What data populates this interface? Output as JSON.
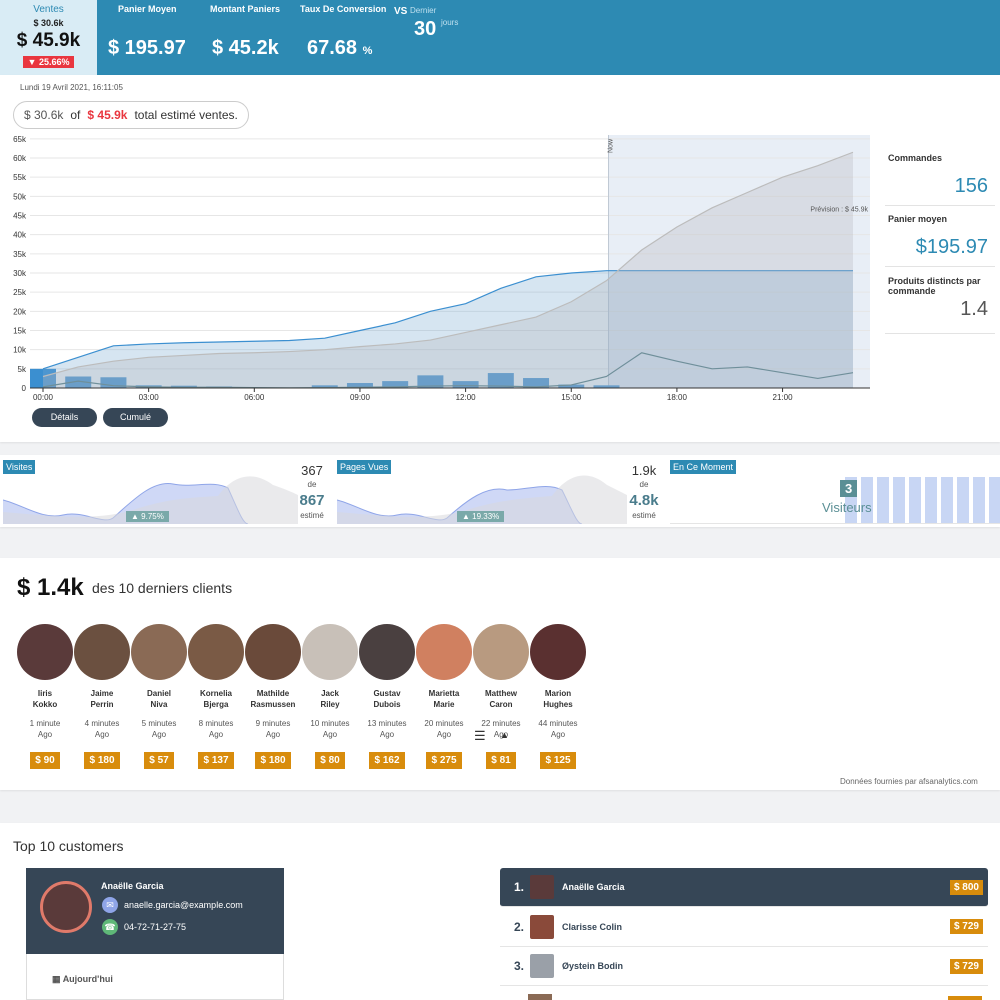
{
  "header": {
    "ventes_label": "Ventes",
    "ventes_prev": "$ 30.6k",
    "ventes_value": "$ 45.9k",
    "ventes_change": "25.66%",
    "panier_label": "Panier Moyen",
    "panier_value": "$ 195.97",
    "montant_label": "Montant Paniers",
    "montant_value": "$ 45.2k",
    "taux_label": "Taux De Conversion",
    "taux_value": "67.68",
    "taux_unit": "%",
    "vs_label": "VS",
    "vs_dernier": "Dernier",
    "vs_num": "30",
    "vs_jours": "jours"
  },
  "date": "Lundi 19 Avril 2021, 16:11:05",
  "estimate": {
    "current": "$ 30.6k",
    "of": "of",
    "total": "$ 45.9k",
    "text": "total estimé ventes."
  },
  "chart_data": {
    "type": "line",
    "title": "",
    "x": [
      "00:00",
      "01:00",
      "02:00",
      "03:00",
      "04:00",
      "05:00",
      "06:00",
      "07:00",
      "08:00",
      "09:00",
      "10:00",
      "11:00",
      "12:00",
      "13:00",
      "14:00",
      "15:00",
      "16:00",
      "17:00",
      "18:00",
      "19:00",
      "20:00",
      "21:00",
      "22:00",
      "23:00"
    ],
    "xticks": [
      "00:00",
      "03:00",
      "06:00",
      "09:00",
      "12:00",
      "15:00",
      "18:00",
      "21:00"
    ],
    "yticks": [
      "0",
      "5k",
      "10k",
      "15k",
      "20k",
      "25k",
      "30k",
      "35k",
      "40k",
      "45k",
      "50k",
      "55k",
      "60k",
      "65k"
    ],
    "ylim": [
      0,
      66000
    ],
    "now_label": "Now",
    "forecast_label": "Prévision : $ 45.9k",
    "series": [
      {
        "values": [
          5000,
          8000,
          11000,
          11500,
          11800,
          12000,
          12200,
          12400,
          13000,
          15000,
          17000,
          20000,
          22000,
          26000,
          29000,
          30000,
          30600,
          30600,
          30600,
          30600,
          30600,
          30600,
          30600,
          30600
        ]
      },
      {
        "values": [
          3000,
          5500,
          7000,
          8000,
          8500,
          9000,
          9200,
          9500,
          10000,
          10800,
          11500,
          12500,
          14500,
          16500,
          18500,
          22500,
          28000,
          36000,
          42000,
          47000,
          51000,
          55000,
          58000,
          61500
        ]
      },
      {
        "values": [
          300,
          1800,
          600,
          300,
          200,
          200,
          100,
          50,
          100,
          200,
          300,
          500,
          600,
          500,
          300,
          800,
          3000,
          9200,
          7000,
          5000,
          5500,
          4000,
          2500,
          4000
        ]
      }
    ],
    "bars": [
      5000,
      3000,
      2800,
      700,
      600,
      400,
      100,
      100,
      700,
      1300,
      1800,
      3300,
      1800,
      3900,
      2600,
      900,
      700,
      0,
      0,
      0,
      0,
      0,
      0,
      0
    ]
  },
  "buttons": {
    "details": "Détails",
    "cumule": "Cumulé"
  },
  "stats": {
    "commandes_label": "Commandes",
    "commandes_value": "156",
    "panier_label": "Panier moyen",
    "panier_value": "$195.97",
    "produits_label": "Produits distincts par commande",
    "produits_value": "1.4"
  },
  "mini": {
    "visites": {
      "label": "Visites",
      "a": "367",
      "de": "de",
      "b": "867",
      "est": "estimé",
      "pct": "9.75%"
    },
    "pages": {
      "label": "Pages Vues",
      "a": "1.9k",
      "de": "de",
      "b": "4.8k",
      "est": "estimé",
      "pct": "19.33%"
    },
    "now": {
      "label": "En Ce Moment",
      "count": "3",
      "text": "Visiteurs"
    }
  },
  "recent": {
    "total": "$ 1.4k",
    "label": "des 10 derniers clients",
    "customers": [
      {
        "first": "Iiris",
        "last": "Kokko",
        "t1": "1 minute",
        "t2": "Ago",
        "price": "$ 90"
      },
      {
        "first": "Jaime",
        "last": "Perrin",
        "t1": "4 minutes",
        "t2": "Ago",
        "price": "$ 180"
      },
      {
        "first": "Daniel",
        "last": "Niva",
        "t1": "5 minutes",
        "t2": "Ago",
        "price": "$ 57"
      },
      {
        "first": "Kornelia",
        "last": "Bjerga",
        "t1": "8 minutes",
        "t2": "Ago",
        "price": "$ 137"
      },
      {
        "first": "Mathilde",
        "last": "Rasmussen",
        "t1": "9 minutes",
        "t2": "Ago",
        "price": "$ 180"
      },
      {
        "first": "Jack",
        "last": "Riley",
        "t1": "10 minutes",
        "t2": "Ago",
        "price": "$ 80"
      },
      {
        "first": "Gustav",
        "last": "Dubois",
        "t1": "13 minutes",
        "t2": "Ago",
        "price": "$ 162"
      },
      {
        "first": "Marietta",
        "last": "Marie",
        "t1": "20 minutes",
        "t2": "Ago",
        "price": "$ 275"
      },
      {
        "first": "Matthew",
        "last": "Caron",
        "t1": "22 minutes",
        "t2": "Ago",
        "price": "$ 81"
      },
      {
        "first": "Marion",
        "last": "Hughes",
        "t1": "44 minutes",
        "t2": "Ago",
        "price": "$ 125"
      }
    ],
    "avatar_colors": [
      "#5a3a3a",
      "#6b5040",
      "#8a6a55",
      "#7a5a45",
      "#6a4a3a",
      "#c8c0b8",
      "#4a4040",
      "#d08060",
      "#b89a80",
      "#5a3030"
    ],
    "credit": "Données fournies par  afsanalytics.com"
  },
  "top10": {
    "title": "Top 10 customers",
    "card": {
      "name": "Anaëlle Garcia",
      "email": "anaelle.garcia@example.com",
      "phone": "04-72-71-27-75",
      "today": "Aujourd'hui"
    },
    "rows": [
      {
        "rank": "1.",
        "name": "Anaëlle Garcia",
        "value": "$ 800"
      },
      {
        "rank": "2.",
        "name": "Clarisse Colin",
        "value": "$ 729"
      },
      {
        "rank": "3.",
        "name": "Øystein Bodin",
        "value": "$ 729"
      }
    ]
  }
}
